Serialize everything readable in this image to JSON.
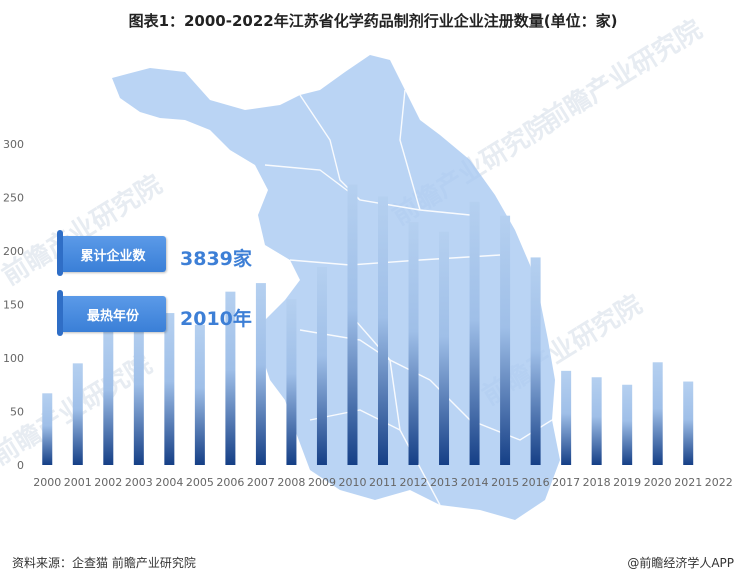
{
  "header": {
    "title": "图表1：2000-2022年江苏省化学药品制剂行业企业注册数量(单位：家)"
  },
  "callouts": [
    {
      "label": "累计企业数",
      "value": "3839家"
    },
    {
      "label": "最热年份",
      "value": "2010年"
    }
  ],
  "footer": {
    "source": "资料来源：企查猫 前瞻产业研究院",
    "credit": "@前瞻经济学人APP"
  },
  "watermark_text": "前瞻产业研究院",
  "colors": {
    "bar_top": "#b5d0f0",
    "bar_bottom": "#153f86",
    "map_fill": "#a9c9f1",
    "accent": "#3d7fd6"
  },
  "chart_data": {
    "type": "bar",
    "categories": [
      "2000",
      "2001",
      "2002",
      "2003",
      "2004",
      "2005",
      "2006",
      "2007",
      "2008",
      "2009",
      "2010",
      "2011",
      "2012",
      "2013",
      "2014",
      "2015",
      "2016",
      "2017",
      "2018",
      "2019",
      "2020",
      "2021",
      "2022"
    ],
    "values": [
      67,
      95,
      128,
      137,
      142,
      131,
      162,
      170,
      155,
      185,
      262,
      251,
      227,
      218,
      246,
      233,
      194,
      88,
      82,
      75,
      96,
      78,
      0
    ],
    "title": "图表1：2000-2022年江苏省化学药品制剂行业企业注册数量(单位：家)",
    "xlabel": "",
    "ylabel": "",
    "ylim": [
      0,
      300
    ],
    "yticks": [
      0,
      50,
      100,
      150,
      200,
      250,
      300
    ],
    "grid": false,
    "legend": "none"
  }
}
